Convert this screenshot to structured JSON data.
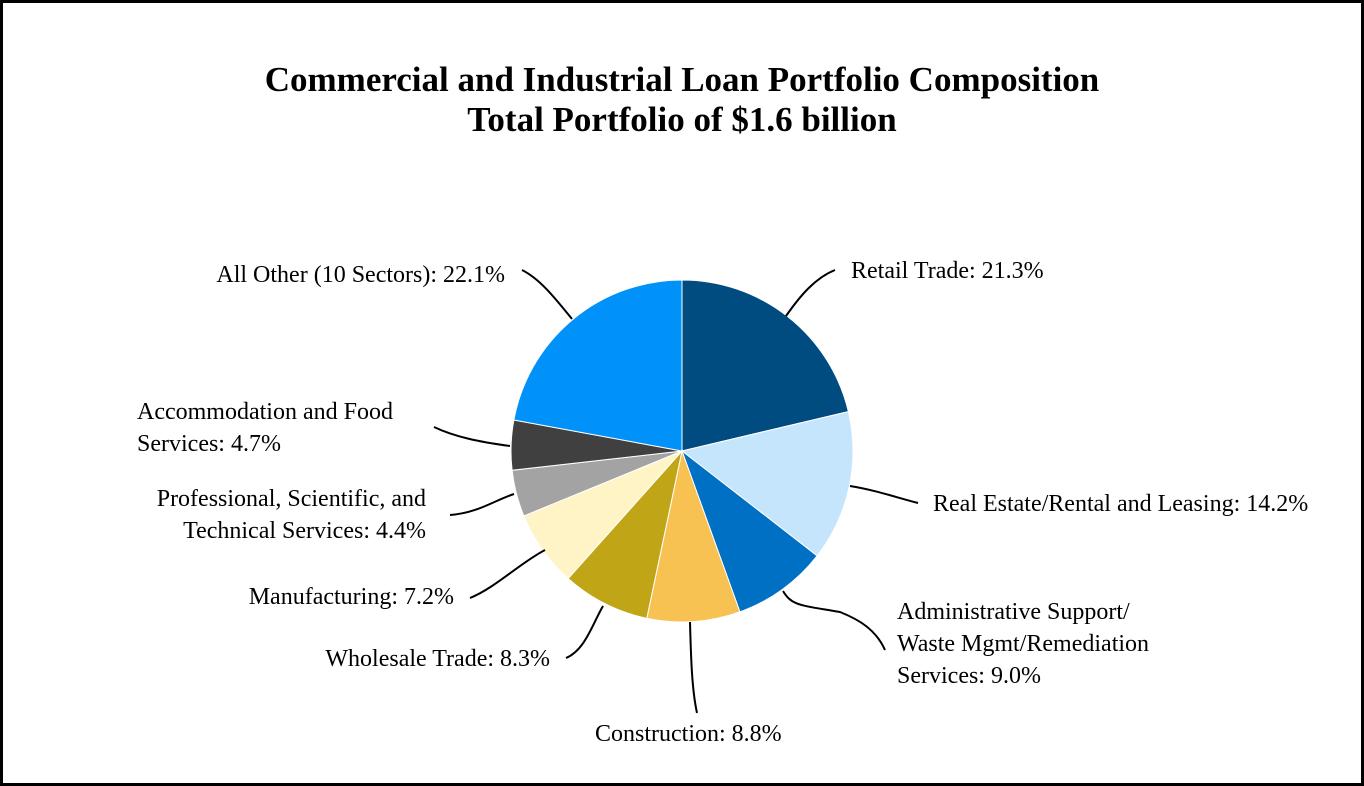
{
  "chart_data": {
    "type": "pie",
    "title": "Commercial and Industrial Loan Portfolio Composition",
    "subtitle": "Total Portfolio of $1.6 billion",
    "slices": [
      {
        "label": [
          "Retail Trade: 21.3%"
        ],
        "value": 21.3,
        "color": "#004B80"
      },
      {
        "label": [
          "Real Estate/Rental and Leasing: 14.2%"
        ],
        "value": 14.2,
        "color": "#C5E5FC"
      },
      {
        "label": [
          "Administrative Support/",
          "Waste Mgmt/Remediation",
          "Services: 9.0%"
        ],
        "value": 9.0,
        "color": "#0070C4"
      },
      {
        "label": [
          "Construction: 8.8%"
        ],
        "value": 8.8,
        "color": "#F8C253"
      },
      {
        "label": [
          "Wholesale Trade: 8.3%"
        ],
        "value": 8.3,
        "color": "#C0A617"
      },
      {
        "label": [
          "Manufacturing: 7.2%"
        ],
        "value": 7.2,
        "color": "#FEF4C6"
      },
      {
        "label": [
          "Professional, Scientific, and",
          "Technical Services: 4.4%"
        ],
        "value": 4.4,
        "color": "#A3A3A3"
      },
      {
        "label": [
          "Accommodation and Food",
          "Services: 4.7%"
        ],
        "value": 4.7,
        "color": "#404040"
      },
      {
        "label": [
          "All Other (10 Sectors): 22.1%"
        ],
        "value": 22.1,
        "color": "#0091F9"
      }
    ]
  }
}
